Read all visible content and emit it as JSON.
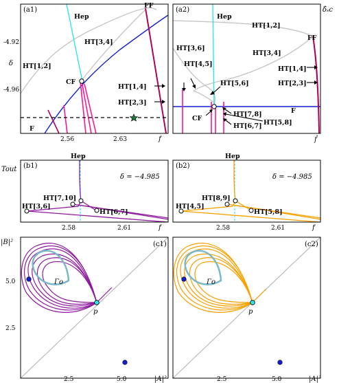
{
  "colors": {
    "magenta": "#ff1493",
    "crimson": "#b0005a",
    "purple": "#8e1a9e",
    "orange": "#f7a000",
    "blue": "#1020d0",
    "cyan": "#2fe6f0",
    "gray": "#bdbdbd",
    "green": "#1f7a3a",
    "orbit_teal": "#7ab8c8"
  },
  "a1": {
    "panel_label": "(a1)",
    "y_axis_label": "δ",
    "x_axis_label": "f",
    "y_ticks": [
      "-4.92",
      "-4.96"
    ],
    "x_ticks": [
      "2.56",
      "2.63"
    ],
    "labels": {
      "hep": "Hep",
      "ff": "FF",
      "ht34": "HT[3,4]",
      "ht12": "HT[1,2]",
      "cf": "CF",
      "ht14": "HT[1,4]",
      "ht23": "HT[2,3]",
      "f": "F"
    }
  },
  "a2": {
    "panel_label": "(a2)",
    "y_axis_label": "δ̂ₛc",
    "x_axis_label": "f̂",
    "labels": {
      "hep": "Hep",
      "ht12": "HT[1,2]",
      "ff": "FF",
      "ht36": "HT[3,6]",
      "ht45": "HT[4,5]",
      "ht34": "HT[3,4]",
      "ht14": "HT[1,4]",
      "ht23": "HT[2,3]",
      "ht56": "HT[5,6]",
      "ht78": "HT[7,8]",
      "f": "F",
      "cf": "CF",
      "ht58": "HT[5,8]",
      "ht67": "HT[6,7]"
    }
  },
  "b1": {
    "panel_label": "(b1)",
    "y_axis_label": "Tout",
    "x_axis_label": "f",
    "delta_text": "δ = −4.985",
    "x_ticks": [
      "2.58",
      "2.61"
    ],
    "labels": {
      "hep": "Hep",
      "ht710": "HT[7,10]",
      "ht36": "HT[3,6]",
      "ht67": "HT[6,7]"
    }
  },
  "b2": {
    "panel_label": "(b2)",
    "x_axis_label": "f",
    "delta_text": "δ = −4.985",
    "x_ticks": [
      "2.58",
      "2.61"
    ],
    "labels": {
      "hep": "Hep",
      "ht89": "HT[8,9]",
      "ht45": "HT[4,5]",
      "ht58": "HT[5,8]"
    }
  },
  "c1": {
    "panel_label": "(c1)",
    "y_axis_label": "|B|²",
    "x_axis_label": "|A|²",
    "y_ticks": [
      "5.0",
      "2.5"
    ],
    "x_ticks": [
      "2.5",
      "5.0"
    ],
    "gamma_label": "Γo",
    "p_label": "p"
  },
  "c2": {
    "panel_label": "(c2)",
    "x_axis_label": "|A|²",
    "x_ticks": [
      "2.5",
      "5.0"
    ],
    "gamma_label": "Γo",
    "p_label": "p"
  }
}
